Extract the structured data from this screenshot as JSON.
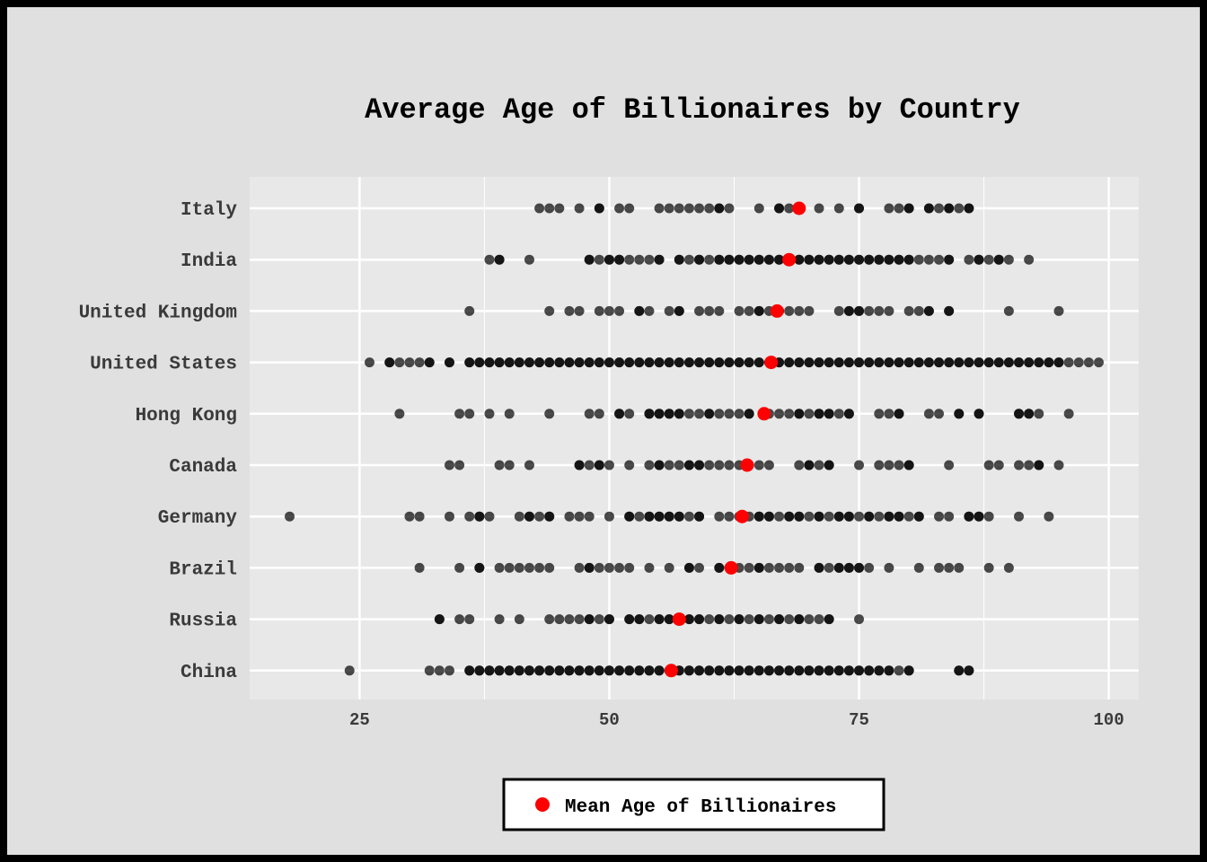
{
  "chart_data": {
    "type": "scatter",
    "title": "Average Age of Billionaires by Country",
    "xlabel": "",
    "ylabel": "",
    "xlim": [
      14,
      103
    ],
    "xticks": [
      25,
      50,
      75,
      100
    ],
    "grid": true,
    "legend_placement": "bottom",
    "colors": {
      "point": "#000000",
      "point_opacity": 0.7,
      "mean": "#ff0000",
      "panel": "#e8e8e8",
      "grid": "#ffffff",
      "background": "#e0e0e0"
    },
    "categories": [
      "Italy",
      "India",
      "United Kingdom",
      "United States",
      "Hong Kong",
      "Canada",
      "Germany",
      "Brazil",
      "Russia",
      "China"
    ],
    "series": [
      {
        "name": "Mean Age of Billionaires",
        "values": [
          69,
          68,
          66.8,
          66.2,
          65.5,
          63.8,
          63.3,
          62.2,
          57,
          56.2
        ]
      }
    ],
    "points": {
      "Italy": [
        43,
        44,
        45,
        47,
        49,
        49,
        51,
        52,
        55,
        56,
        57,
        58,
        59,
        60,
        61,
        61,
        62,
        65,
        67,
        67,
        68,
        69,
        71,
        73,
        75,
        75,
        78,
        79,
        80,
        80,
        82,
        82,
        83,
        84,
        84,
        85,
        86,
        86
      ],
      "India": [
        38,
        39,
        39,
        42,
        48,
        48,
        49,
        50,
        50,
        51,
        51,
        52,
        53,
        54,
        55,
        55,
        57,
        57,
        58,
        59,
        59,
        60,
        61,
        61,
        62,
        62,
        63,
        63,
        64,
        64,
        65,
        65,
        66,
        66,
        67,
        67,
        68,
        69,
        69,
        70,
        70,
        71,
        71,
        72,
        72,
        73,
        73,
        74,
        74,
        75,
        75,
        76,
        76,
        77,
        77,
        78,
        78,
        79,
        79,
        80,
        80,
        81,
        82,
        83,
        84,
        84,
        86,
        87,
        87,
        88,
        89,
        89,
        90,
        92
      ],
      "United Kingdom": [
        36,
        44,
        46,
        47,
        49,
        50,
        51,
        53,
        53,
        54,
        56,
        57,
        57,
        59,
        60,
        61,
        63,
        64,
        65,
        65,
        66,
        67,
        67,
        68,
        69,
        70,
        73,
        74,
        74,
        75,
        75,
        76,
        77,
        78,
        80,
        81,
        82,
        82,
        84,
        84,
        90,
        95
      ],
      "United States": [
        26,
        28,
        28,
        29,
        30,
        31,
        32,
        32,
        34,
        34,
        36,
        36,
        37,
        37,
        38,
        38,
        39,
        39,
        40,
        40,
        41,
        41,
        42,
        42,
        43,
        43,
        44,
        44,
        45,
        45,
        46,
        46,
        47,
        47,
        48,
        48,
        49,
        49,
        50,
        50,
        51,
        51,
        52,
        52,
        53,
        53,
        54,
        54,
        55,
        55,
        56,
        56,
        57,
        57,
        58,
        58,
        59,
        59,
        60,
        60,
        61,
        61,
        62,
        62,
        63,
        63,
        64,
        64,
        65,
        65,
        66,
        66,
        67,
        67,
        68,
        68,
        69,
        69,
        70,
        70,
        71,
        71,
        72,
        72,
        73,
        73,
        74,
        74,
        75,
        75,
        76,
        76,
        77,
        77,
        78,
        78,
        79,
        79,
        80,
        80,
        81,
        81,
        82,
        82,
        83,
        83,
        84,
        84,
        85,
        85,
        86,
        86,
        87,
        87,
        88,
        88,
        89,
        89,
        90,
        90,
        91,
        91,
        92,
        92,
        93,
        93,
        94,
        94,
        95,
        95,
        96,
        97,
        98,
        99
      ],
      "Hong Kong": [
        29,
        35,
        36,
        38,
        40,
        44,
        48,
        49,
        51,
        51,
        52,
        54,
        54,
        55,
        55,
        56,
        56,
        57,
        57,
        58,
        59,
        60,
        60,
        61,
        62,
        63,
        64,
        64,
        66,
        67,
        68,
        69,
        69,
        70,
        71,
        71,
        72,
        72,
        73,
        74,
        74,
        77,
        78,
        79,
        79,
        82,
        83,
        85,
        85,
        87,
        87,
        91,
        91,
        92,
        92,
        93,
        96
      ],
      "Canada": [
        34,
        35,
        39,
        40,
        42,
        47,
        47,
        48,
        49,
        49,
        50,
        52,
        54,
        55,
        55,
        56,
        57,
        58,
        58,
        59,
        59,
        60,
        61,
        62,
        63,
        64,
        65,
        66,
        69,
        70,
        70,
        71,
        72,
        72,
        75,
        77,
        78,
        79,
        80,
        80,
        84,
        88,
        89,
        91,
        92,
        93,
        93,
        95
      ],
      "Germany": [
        18,
        30,
        31,
        34,
        36,
        37,
        37,
        38,
        41,
        42,
        42,
        43,
        44,
        44,
        46,
        47,
        48,
        50,
        52,
        52,
        53,
        54,
        54,
        55,
        55,
        56,
        56,
        57,
        57,
        58,
        59,
        59,
        61,
        62,
        63,
        64,
        65,
        65,
        66,
        66,
        67,
        68,
        68,
        69,
        69,
        70,
        71,
        71,
        72,
        73,
        73,
        74,
        74,
        75,
        76,
        76,
        77,
        78,
        78,
        79,
        79,
        80,
        81,
        81,
        83,
        84,
        86,
        86,
        87,
        87,
        88,
        91,
        94
      ],
      "Brazil": [
        31,
        35,
        37,
        37,
        39,
        40,
        41,
        42,
        43,
        44,
        47,
        48,
        48,
        49,
        50,
        51,
        52,
        54,
        56,
        58,
        58,
        59,
        61,
        61,
        62,
        63,
        64,
        65,
        65,
        66,
        67,
        68,
        69,
        71,
        71,
        72,
        73,
        73,
        74,
        74,
        75,
        75,
        76,
        78,
        81,
        83,
        84,
        85,
        88,
        90
      ],
      "Russia": [
        33,
        33,
        35,
        36,
        39,
        41,
        44,
        45,
        46,
        47,
        48,
        48,
        49,
        50,
        50,
        52,
        52,
        53,
        53,
        54,
        55,
        55,
        56,
        56,
        57,
        58,
        58,
        59,
        59,
        60,
        61,
        61,
        62,
        63,
        63,
        64,
        65,
        65,
        66,
        67,
        67,
        68,
        69,
        69,
        70,
        71,
        72,
        72,
        75
      ],
      "China": [
        24,
        32,
        33,
        34,
        36,
        36,
        37,
        37,
        38,
        38,
        39,
        39,
        40,
        40,
        41,
        41,
        42,
        42,
        43,
        43,
        44,
        44,
        45,
        45,
        46,
        46,
        47,
        47,
        48,
        48,
        49,
        49,
        50,
        50,
        51,
        51,
        52,
        52,
        53,
        53,
        54,
        54,
        55,
        55,
        56,
        56,
        57,
        57,
        58,
        58,
        59,
        59,
        60,
        60,
        61,
        61,
        62,
        62,
        63,
        63,
        64,
        64,
        65,
        65,
        66,
        66,
        67,
        67,
        68,
        68,
        69,
        69,
        70,
        70,
        71,
        71,
        72,
        72,
        73,
        73,
        74,
        74,
        75,
        75,
        76,
        76,
        77,
        77,
        78,
        78,
        79,
        80,
        80,
        85,
        85,
        86,
        86
      ]
    }
  }
}
